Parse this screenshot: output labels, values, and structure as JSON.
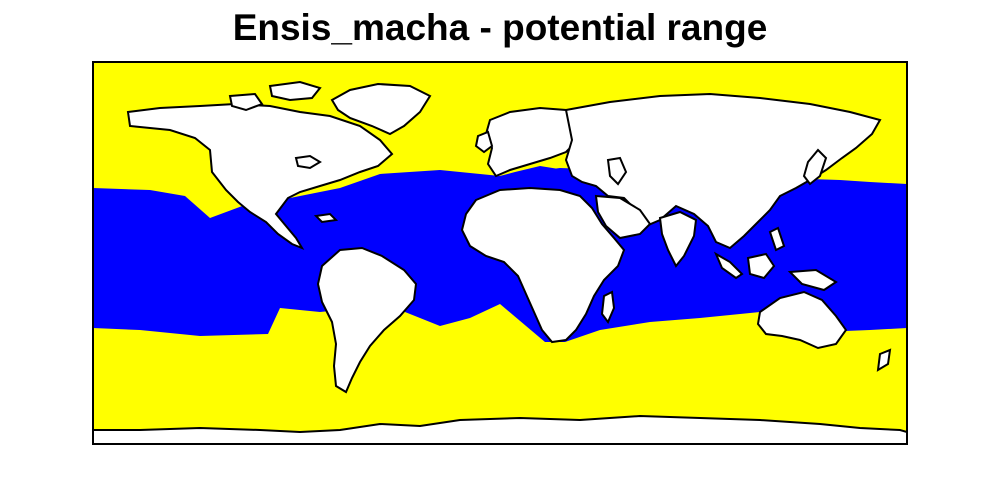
{
  "title": "Ensis_macha - potential range",
  "colors": {
    "unsuitable_ocean": "#ffff00",
    "potential_range": "#0000ff",
    "land": "#ffffff",
    "outline": "#000000"
  },
  "legend": null
}
